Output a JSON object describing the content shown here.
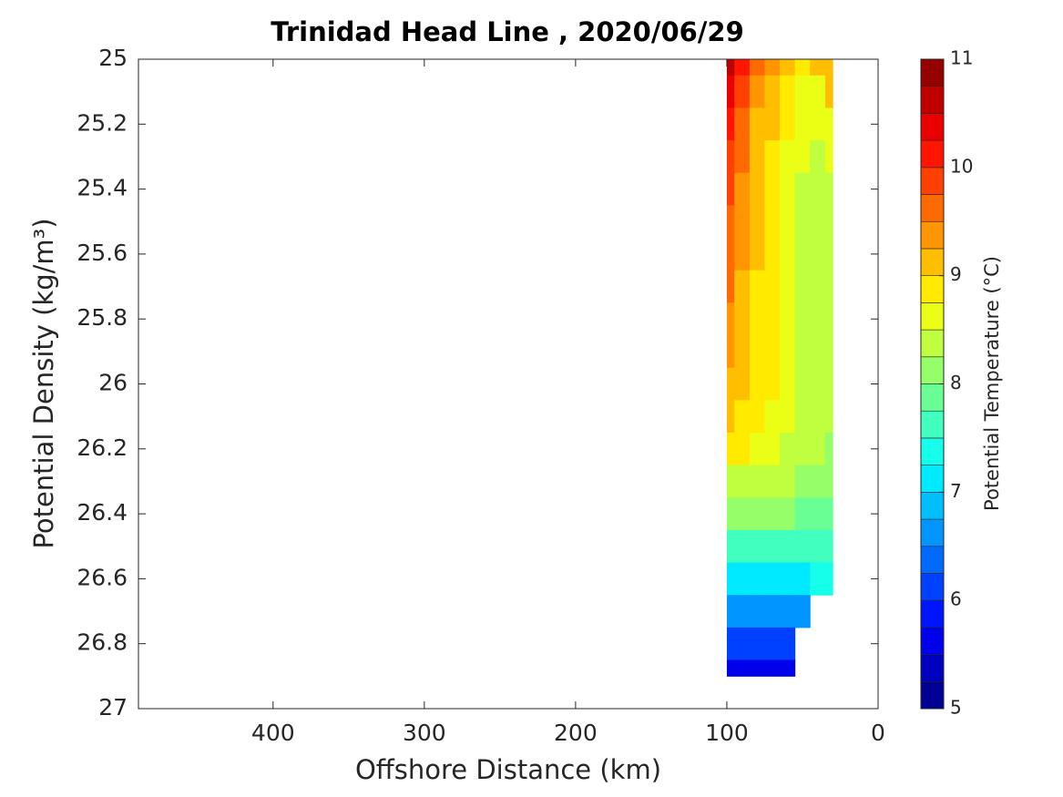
{
  "chart_data": {
    "type": "contour",
    "title": "Trinidad Head Line , 2020/06/29",
    "xlabel": "Offshore Distance (km)",
    "ylabel": "Potential Density (kg/m³)",
    "colorbar_label": "Potential Temperature (°C)",
    "colormap": "jet",
    "levels": 24,
    "clim": [
      5,
      11
    ],
    "cticks": [
      5,
      6,
      7,
      8,
      9,
      10,
      11
    ],
    "xlim": [
      489,
      0
    ],
    "xticks": [
      400,
      300,
      200,
      100,
      0
    ],
    "ylim": [
      25,
      27
    ],
    "y_reversed": true,
    "yticks": [
      25,
      25.2,
      25.4,
      25.6,
      25.8,
      26,
      26.2,
      26.4,
      26.6,
      26.8,
      27
    ],
    "x": [
      100,
      90,
      80,
      70,
      60,
      50,
      40,
      30
    ],
    "y": [
      25.0,
      25.1,
      25.2,
      25.3,
      25.4,
      25.5,
      25.6,
      25.7,
      25.8,
      25.9,
      26.0,
      26.1,
      26.2,
      26.3,
      26.4,
      26.5,
      26.6,
      26.7,
      26.8,
      26.9
    ],
    "z": [
      [
        10.6,
        10.1,
        9.6,
        9.4,
        9.1,
        8.9,
        9.0,
        9.2
      ],
      [
        10.3,
        9.8,
        9.4,
        9.1,
        8.9,
        8.7,
        8.6,
        9.0
      ],
      [
        10.1,
        9.6,
        9.2,
        9.0,
        8.8,
        8.6,
        8.5,
        8.7
      ],
      [
        9.9,
        9.5,
        9.1,
        8.9,
        8.7,
        8.5,
        8.4,
        8.6
      ],
      [
        9.8,
        9.4,
        9.1,
        8.9,
        8.6,
        8.4,
        8.3,
        8.4
      ],
      [
        9.7,
        9.3,
        9.0,
        8.9,
        8.6,
        8.4,
        8.3,
        8.4
      ],
      [
        9.6,
        9.3,
        9.0,
        8.8,
        8.6,
        8.4,
        8.3,
        8.3
      ],
      [
        9.5,
        9.2,
        8.9,
        8.8,
        8.6,
        8.4,
        8.3,
        8.3
      ],
      [
        9.4,
        9.1,
        8.9,
        8.8,
        8.5,
        8.4,
        8.3,
        8.4
      ],
      [
        9.3,
        9.1,
        8.9,
        8.8,
        8.5,
        8.4,
        8.3,
        8.4
      ],
      [
        9.2,
        9.0,
        8.9,
        8.8,
        8.5,
        8.4,
        8.3,
        8.3
      ],
      [
        9.1,
        8.9,
        8.8,
        8.7,
        8.5,
        8.4,
        8.3,
        8.3
      ],
      [
        8.9,
        8.8,
        8.7,
        8.6,
        8.4,
        8.3,
        8.3,
        8.2
      ],
      [
        8.4,
        8.4,
        8.4,
        8.3,
        8.3,
        8.2,
        8.1,
        8.1
      ],
      [
        8.2,
        8.2,
        8.1,
        8.1,
        8.0,
        7.9,
        7.8,
        7.8
      ],
      [
        7.6,
        7.6,
        7.6,
        7.5,
        7.5,
        7.5,
        7.5,
        7.5
      ],
      [
        7.2,
        7.2,
        7.1,
        7.0,
        7.1,
        7.2,
        7.3,
        7.4
      ],
      [
        6.6,
        6.5,
        6.5,
        6.5,
        6.6,
        6.7,
        null,
        null
      ],
      [
        6.1,
        6.0,
        6.0,
        6.1,
        6.2,
        null,
        null,
        null
      ],
      [
        5.6,
        5.6,
        5.6,
        5.7,
        5.7,
        null,
        null,
        null
      ]
    ]
  }
}
